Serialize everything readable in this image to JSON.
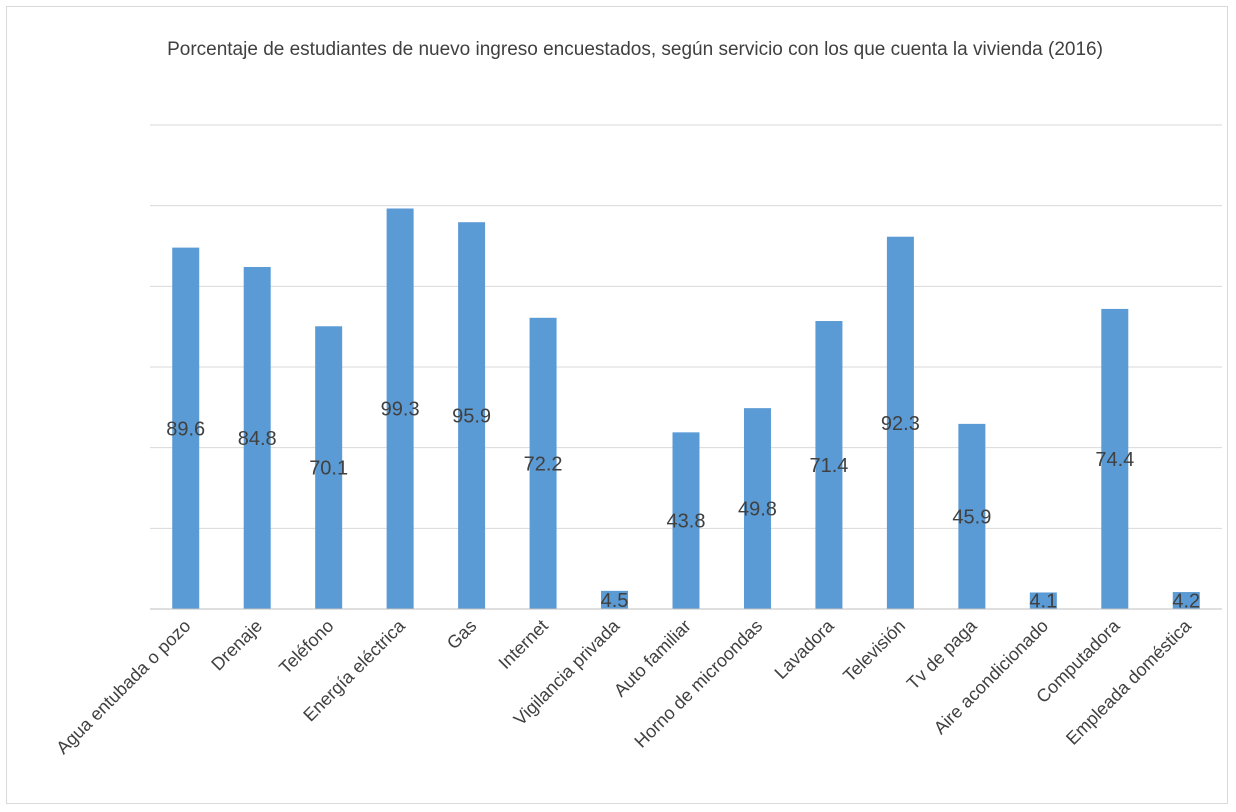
{
  "chart_data": {
    "type": "bar",
    "title": "Porcentaje de estudiantes de nuevo ingreso encuestados, según servicio con los que cuenta la vivienda (2016)",
    "categories": [
      "Agua entubada o pozo",
      "Drenaje",
      "Teléfono",
      "Energía eléctrica",
      "Gas",
      "Internet",
      "Vigilancia privada",
      "Auto familiar",
      "Horno de microondas",
      "Lavadora",
      "Televisión",
      "Tv de paga",
      "Aire acondicionado",
      "Computadora",
      "Empleada doméstica"
    ],
    "values": [
      89.6,
      84.8,
      70.1,
      99.3,
      95.9,
      72.2,
      4.5,
      43.8,
      49.8,
      71.4,
      92.3,
      45.9,
      4.1,
      74.4,
      4.2
    ],
    "data_labels": [
      "89.6",
      "84.8",
      "70.1",
      "99.3",
      "95.9",
      "72.2",
      "4.5",
      "43.8",
      "49.8",
      "71.4",
      "92.3",
      "45.9",
      "4.1",
      "74.4",
      "4.2"
    ],
    "ylim": [
      0,
      120
    ],
    "gridlines": true,
    "legend": false,
    "bar_color": "#5b9bd5"
  }
}
